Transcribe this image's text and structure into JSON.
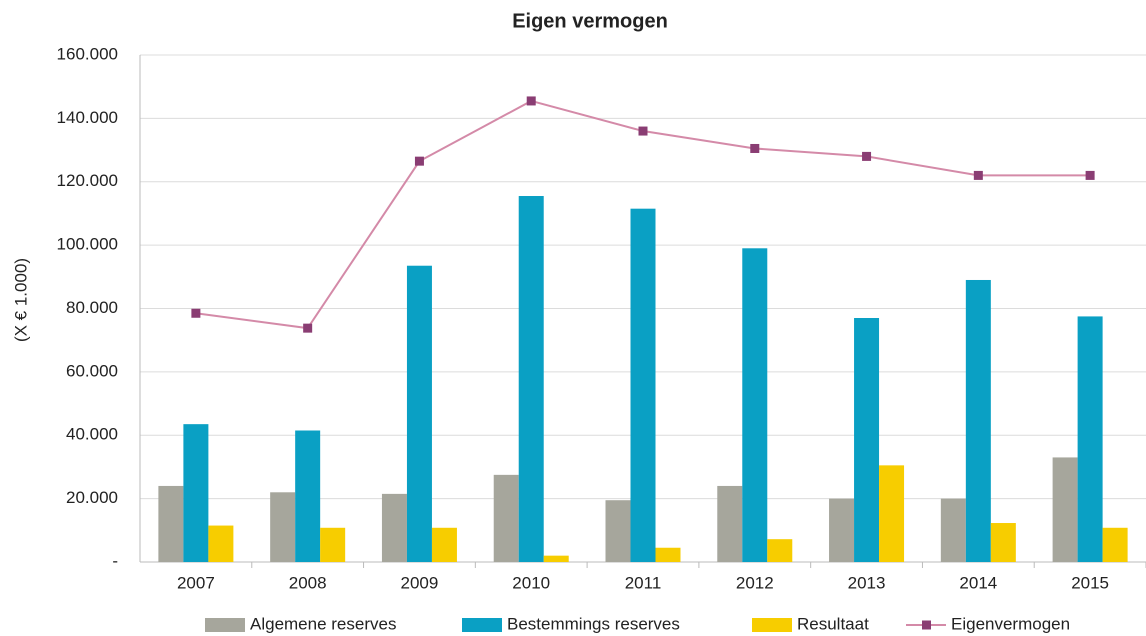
{
  "chart_data": {
    "type": "bar",
    "title": "Eigen vermogen",
    "y_label": "(X € 1.000)",
    "categories": [
      "2007",
      "2008",
      "2009",
      "2010",
      "2011",
      "2012",
      "2013",
      "2014",
      "2015"
    ],
    "series": [
      {
        "name": "Algemene reserves",
        "color": "#a6a69c",
        "values": [
          24000,
          22000,
          21500,
          27500,
          19500,
          24000,
          20000,
          20000,
          33000
        ]
      },
      {
        "name": "Bestemmings reserves",
        "color": "#0aa0c4",
        "values": [
          43500,
          41500,
          93500,
          115500,
          111500,
          99000,
          77000,
          89000,
          77500
        ]
      },
      {
        "name": "Resultaat",
        "color": "#f7cd00",
        "values": [
          11500,
          10800,
          10800,
          2000,
          4500,
          7200,
          30500,
          12300,
          10800
        ]
      },
      {
        "name": "Eigenvermogen",
        "color": "#d48aa8",
        "marker_color": "#8a3d73",
        "type": "line",
        "values": [
          78500,
          73800,
          126500,
          145500,
          136000,
          130500,
          128000,
          122000,
          122000
        ]
      }
    ],
    "ylim": [
      0,
      160000
    ],
    "yticks": [
      {
        "value": 0,
        "label": "-"
      },
      {
        "value": 20000,
        "label": "20.000"
      },
      {
        "value": 40000,
        "label": "40.000"
      },
      {
        "value": 60000,
        "label": "60.000"
      },
      {
        "value": 80000,
        "label": "80.000"
      },
      {
        "value": 100000,
        "label": "100.000"
      },
      {
        "value": 120000,
        "label": "120.000"
      },
      {
        "value": 140000,
        "label": "140.000"
      },
      {
        "value": 160000,
        "label": "160.000"
      }
    ],
    "grid": true,
    "legend": "bottom"
  }
}
